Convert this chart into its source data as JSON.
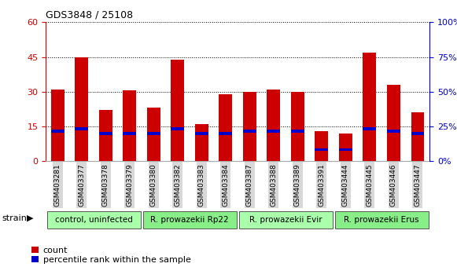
{
  "title": "GDS3848 / 25108",
  "samples": [
    "GSM403281",
    "GSM403377",
    "GSM403378",
    "GSM403379",
    "GSM403380",
    "GSM403382",
    "GSM403383",
    "GSM403384",
    "GSM403387",
    "GSM403388",
    "GSM403389",
    "GSM403391",
    "GSM403444",
    "GSM403445",
    "GSM403446",
    "GSM403447"
  ],
  "count_values": [
    31,
    45,
    22,
    30.5,
    23,
    44,
    16,
    29,
    30,
    31,
    30,
    13,
    12,
    47,
    33,
    21
  ],
  "percentile_values": [
    13,
    14,
    12,
    12,
    12,
    14,
    12,
    12,
    13,
    13,
    13,
    5,
    5,
    14,
    13,
    12
  ],
  "groups": [
    {
      "label": "control, uninfected",
      "start": 0,
      "end": 4,
      "color": "#aaffaa"
    },
    {
      "label": "R. prowazekii Rp22",
      "start": 4,
      "end": 8,
      "color": "#88ee88"
    },
    {
      "label": "R. prowazekii Evir",
      "start": 8,
      "end": 12,
      "color": "#aaffaa"
    },
    {
      "label": "R. prowazekii Erus",
      "start": 12,
      "end": 16,
      "color": "#88ee88"
    }
  ],
  "ylim_left": [
    0,
    60
  ],
  "ylim_right": [
    0,
    100
  ],
  "yticks_left": [
    0,
    15,
    30,
    45,
    60
  ],
  "yticks_right": [
    0,
    25,
    50,
    75,
    100
  ],
  "bar_color_count": "#cc0000",
  "bar_color_percentile": "#0000cc",
  "bar_width": 0.55,
  "background_color": "#ffffff",
  "plot_bg_color": "#ffffff",
  "grid_color": "#000000",
  "title_color": "#000000",
  "left_axis_color": "#cc0000",
  "right_axis_color": "#0000cc",
  "legend_count_label": "count",
  "legend_percentile_label": "percentile rank within the sample",
  "strain_label": "strain",
  "group_label_fontsize": 7.5,
  "tick_fontsize": 6.5,
  "blue_bar_height": 1.2
}
